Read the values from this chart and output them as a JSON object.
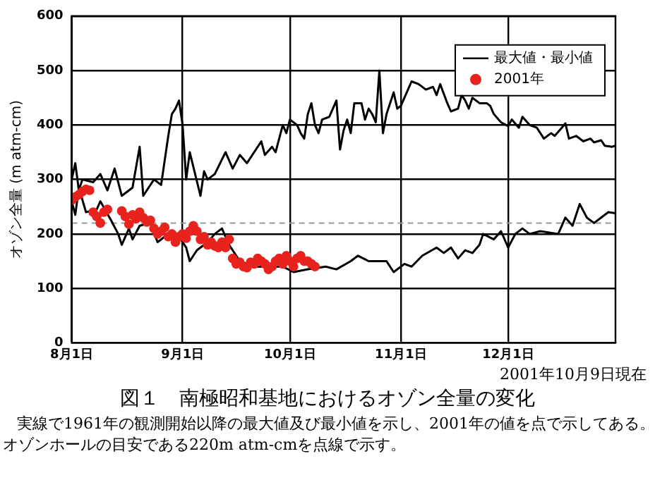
{
  "chart_data": {
    "type": "line",
    "title": "図１　南極昭和基地におけるオゾン全量の変化",
    "ylabel": "オゾン全量 (m atm-cm)",
    "xlim": [
      "--08-01",
      "--12-31"
    ],
    "xticks": [
      {
        "value": "--08-01",
        "label": "8月1日"
      },
      {
        "value": "--09-01",
        "label": "9月1日"
      },
      {
        "value": "--10-01",
        "label": "10月1日"
      },
      {
        "value": "--11-01",
        "label": "11月1日"
      },
      {
        "value": "--12-01",
        "label": "12月1日"
      }
    ],
    "ylim": [
      0,
      600
    ],
    "yticks": [
      0,
      100,
      200,
      300,
      400,
      500,
      600
    ],
    "grid": true,
    "legend": "top right",
    "line_style": "solid",
    "ref_lines": [
      {
        "axis": "y",
        "value": 220,
        "color": "#999999",
        "line_style": "dashed"
      }
    ],
    "annotations": [
      "2001年10月9日現在",
      "実線で1961年の観測開始以降の最大値及び最小値を示し、2001年の値を点で示してある。オゾンホールの目安である220m atm-cmを点線で示す。"
    ],
    "series": [
      {
        "name": "最大値・最小値",
        "type": "line",
        "color": "#000000",
        "marker": "none",
        "x": [
          "--08-01",
          "--08-02",
          "--08-03",
          "--08-04",
          "--08-07",
          "--08-09",
          "--08-11",
          "--08-13",
          "--08-15",
          "--08-18",
          "--08-20",
          "--08-21",
          "--08-24",
          "--08-26",
          "--08-28",
          "--08-29",
          "--08-30",
          "--08-31",
          "--09-01",
          "--09-02",
          "--09-03",
          "--09-06",
          "--09-07",
          "--09-08",
          "--09-10",
          "--09-13",
          "--09-15",
          "--09-17",
          "--09-19",
          "--09-23",
          "--09-24",
          "--09-26",
          "--09-27",
          "--09-29",
          "--09-30",
          "--10-01",
          "--10-03",
          "--10-04",
          "--10-05",
          "--10-06",
          "--10-07",
          "--10-08",
          "--10-09",
          "--10-10",
          "--10-12",
          "--10-14",
          "--10-15",
          "--10-16",
          "--10-17",
          "--10-18",
          "--10-19",
          "--10-21",
          "--10-22",
          "--10-23",
          "--10-24",
          "--10-25",
          "--10-26",
          "--10-27",
          "--10-28",
          "--10-29",
          "--10-30",
          "--10-31",
          "--11-01",
          "--11-03",
          "--11-04",
          "--11-06",
          "--11-08",
          "--11-10",
          "--11-11",
          "--11-12",
          "--11-14",
          "--11-15",
          "--11-17",
          "--11-18",
          "--11-19",
          "--11-20",
          "--11-21",
          "--11-23",
          "--11-25",
          "--11-26",
          "--11-27",
          "--11-29",
          "--12-01",
          "--12-02",
          "--12-04",
          "--12-05",
          "--12-07",
          "--12-09",
          "--12-11",
          "--12-13",
          "--12-14",
          "--12-16",
          "--12-17",
          "--12-18",
          "--12-20",
          "--12-22",
          "--12-24",
          "--12-25",
          "--12-27",
          "--12-28",
          "--12-30",
          "--12-31"
        ],
        "values": [
          300,
          330,
          280,
          300,
          295,
          310,
          280,
          320,
          270,
          285,
          360,
          270,
          300,
          290,
          380,
          420,
          430,
          445,
          400,
          300,
          350,
          270,
          315,
          300,
          310,
          350,
          320,
          345,
          330,
          370,
          345,
          360,
          350,
          400,
          385,
          410,
          400,
          385,
          375,
          420,
          440,
          400,
          385,
          410,
          415,
          445,
          355,
          390,
          410,
          385,
          440,
          440,
          410,
          430,
          420,
          405,
          500,
          385,
          420,
          440,
          460,
          430,
          435,
          465,
          480,
          475,
          465,
          470,
          455,
          475,
          440,
          425,
          430,
          455,
          445,
          430,
          450,
          440,
          440,
          435,
          420,
          405,
          398,
          410,
          395,
          415,
          400,
          395,
          375,
          385,
          380,
          395,
          403,
          375,
          380,
          370,
          375,
          368,
          372,
          362,
          360,
          362
        ]
      },
      {
        "type": "line",
        "color": "#000000",
        "marker": "none",
        "x": [
          "--08-01",
          "--08-02",
          "--08-03",
          "--08-05",
          "--08-08",
          "--08-09",
          "--08-12",
          "--08-14",
          "--08-15",
          "--08-17",
          "--08-18",
          "--08-20",
          "--08-23",
          "--08-25",
          "--08-28",
          "--08-31",
          "--09-02",
          "--09-03",
          "--09-05",
          "--09-08",
          "--09-10",
          "--09-12",
          "--09-14",
          "--09-17",
          "--09-21",
          "--09-29",
          "--10-02",
          "--10-06",
          "--10-11",
          "--10-14",
          "--10-18",
          "--10-20",
          "--10-23",
          "--10-28",
          "--10-30",
          "--11-02",
          "--11-04",
          "--11-07",
          "--11-11",
          "--11-13",
          "--11-15",
          "--11-17",
          "--11-19",
          "--11-21",
          "--11-23",
          "--11-24",
          "--11-27",
          "--11-29",
          "--12-01",
          "--12-03",
          "--12-05",
          "--12-07",
          "--12-10",
          "--12-15",
          "--12-17",
          "--12-19",
          "--12-21",
          "--12-23",
          "--12-25",
          "--12-29",
          "--12-31"
        ],
        "values": [
          260,
          235,
          285,
          240,
          245,
          260,
          225,
          200,
          180,
          210,
          190,
          215,
          220,
          185,
          200,
          195,
          175,
          150,
          170,
          185,
          200,
          210,
          180,
          150,
          140,
          140,
          130,
          135,
          140,
          135,
          150,
          160,
          150,
          150,
          130,
          145,
          140,
          160,
          175,
          165,
          175,
          155,
          170,
          165,
          180,
          200,
          190,
          205,
          175,
          200,
          210,
          200,
          205,
          200,
          230,
          215,
          255,
          230,
          220,
          240,
          238
        ]
      },
      {
        "name": "2001年",
        "type": "scatter",
        "color": "#e8221d",
        "marker": "circle",
        "x": [
          "--08-01",
          "--08-02",
          "--08-03",
          "--08-04",
          "--08-05",
          "--08-06",
          "--08-07",
          "--08-08",
          "--08-09",
          "--08-10",
          "--08-11",
          "--08-15",
          "--08-16",
          "--08-17",
          "--08-18",
          "--08-19",
          "--08-20",
          "--08-21",
          "--08-22",
          "--08-23",
          "--08-24",
          "--08-25",
          "--08-26",
          "--08-27",
          "--08-28",
          "--08-29",
          "--08-30",
          "--08-31",
          "--09-01",
          "--09-02",
          "--09-03",
          "--09-04",
          "--09-05",
          "--09-06",
          "--09-07",
          "--09-08",
          "--09-09",
          "--09-10",
          "--09-11",
          "--09-12",
          "--09-13",
          "--09-14",
          "--09-15",
          "--09-16",
          "--09-17",
          "--09-18",
          "--09-19",
          "--09-20",
          "--09-21",
          "--09-22",
          "--09-23",
          "--09-24",
          "--09-25",
          "--09-26",
          "--09-27",
          "--09-28",
          "--09-29",
          "--09-30",
          "--10-01",
          "--10-02",
          "--10-03",
          "--10-04",
          "--10-05",
          "--10-06",
          "--10-07",
          "--10-08"
        ],
        "values": [
          262,
          268,
          272,
          278,
          282,
          280,
          240,
          232,
          220,
          240,
          245,
          242,
          232,
          218,
          235,
          228,
          240,
          230,
          222,
          225,
          210,
          200,
          205,
          212,
          195,
          200,
          185,
          195,
          200,
          192,
          205,
          215,
          205,
          190,
          195,
          180,
          185,
          178,
          175,
          185,
          175,
          190,
          155,
          145,
          148,
          140,
          138,
          148,
          145,
          155,
          150,
          145,
          135,
          140,
          150,
          155,
          145,
          160,
          150,
          140,
          155,
          160,
          150,
          150,
          145,
          140
        ]
      }
    ]
  }
}
